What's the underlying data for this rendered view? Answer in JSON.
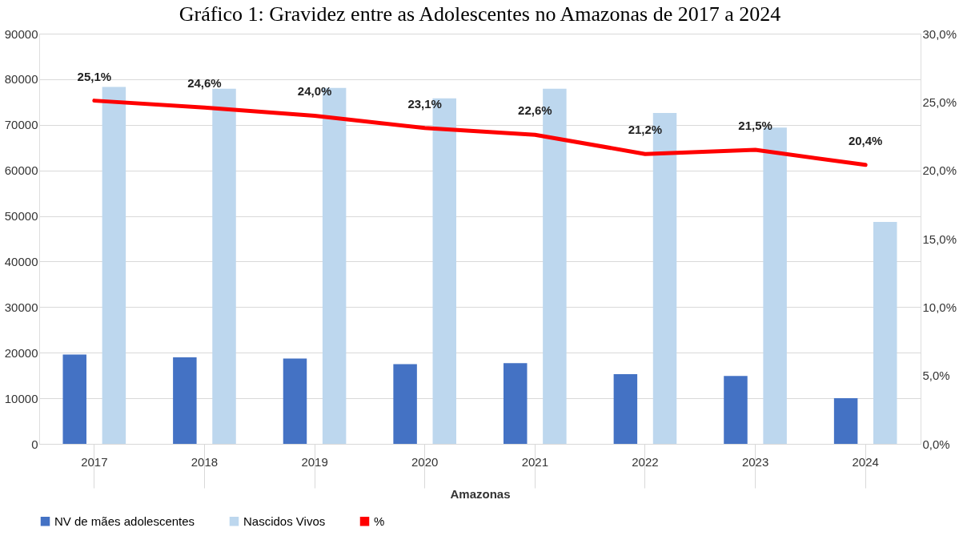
{
  "chart_data": {
    "type": "bar",
    "title": "Gráfico 1: Gravidez entre as Adolescentes no Amazonas de 2017 a 2024",
    "xlabel": "Amazonas",
    "categories": [
      "2017",
      "2018",
      "2019",
      "2020",
      "2021",
      "2022",
      "2023",
      "2024"
    ],
    "series": [
      {
        "name": "NV de mães adolescentes",
        "color": "#4472c4",
        "values": [
          19600,
          19000,
          18700,
          17500,
          17700,
          15300,
          14900,
          10000
        ]
      },
      {
        "name": "Nascidos Vivos",
        "color": "#bdd7ee",
        "values": [
          78300,
          77900,
          78100,
          75800,
          77900,
          72600,
          69400,
          48700
        ]
      },
      {
        "name": "%",
        "type": "line",
        "axis": "y2",
        "color": "#ff0000",
        "values": [
          25.1,
          24.6,
          24.0,
          23.1,
          22.6,
          21.2,
          21.5,
          20.4
        ],
        "value_labels": [
          "25,1%",
          "24,6%",
          "24,0%",
          "23,1%",
          "22,6%",
          "21,2%",
          "21,5%",
          "20,4%"
        ],
        "marker": "none",
        "line_style": "solid"
      }
    ],
    "ylim": [
      0,
      90000
    ],
    "yticks": [
      0,
      10000,
      20000,
      30000,
      40000,
      50000,
      60000,
      70000,
      80000,
      90000
    ],
    "y2lim": [
      0,
      30
    ],
    "y2ticks": [
      {
        "value": 0,
        "label": "0,0%"
      },
      {
        "value": 5,
        "label": "5,0%"
      },
      {
        "value": 10,
        "label": "10,0%"
      },
      {
        "value": 15,
        "label": "15,0%"
      },
      {
        "value": 20,
        "label": "20,0%"
      },
      {
        "value": 25,
        "label": "25,0%"
      },
      {
        "value": 30,
        "label": "30,0%"
      }
    ],
    "grid": "y",
    "legend": "bottom"
  }
}
